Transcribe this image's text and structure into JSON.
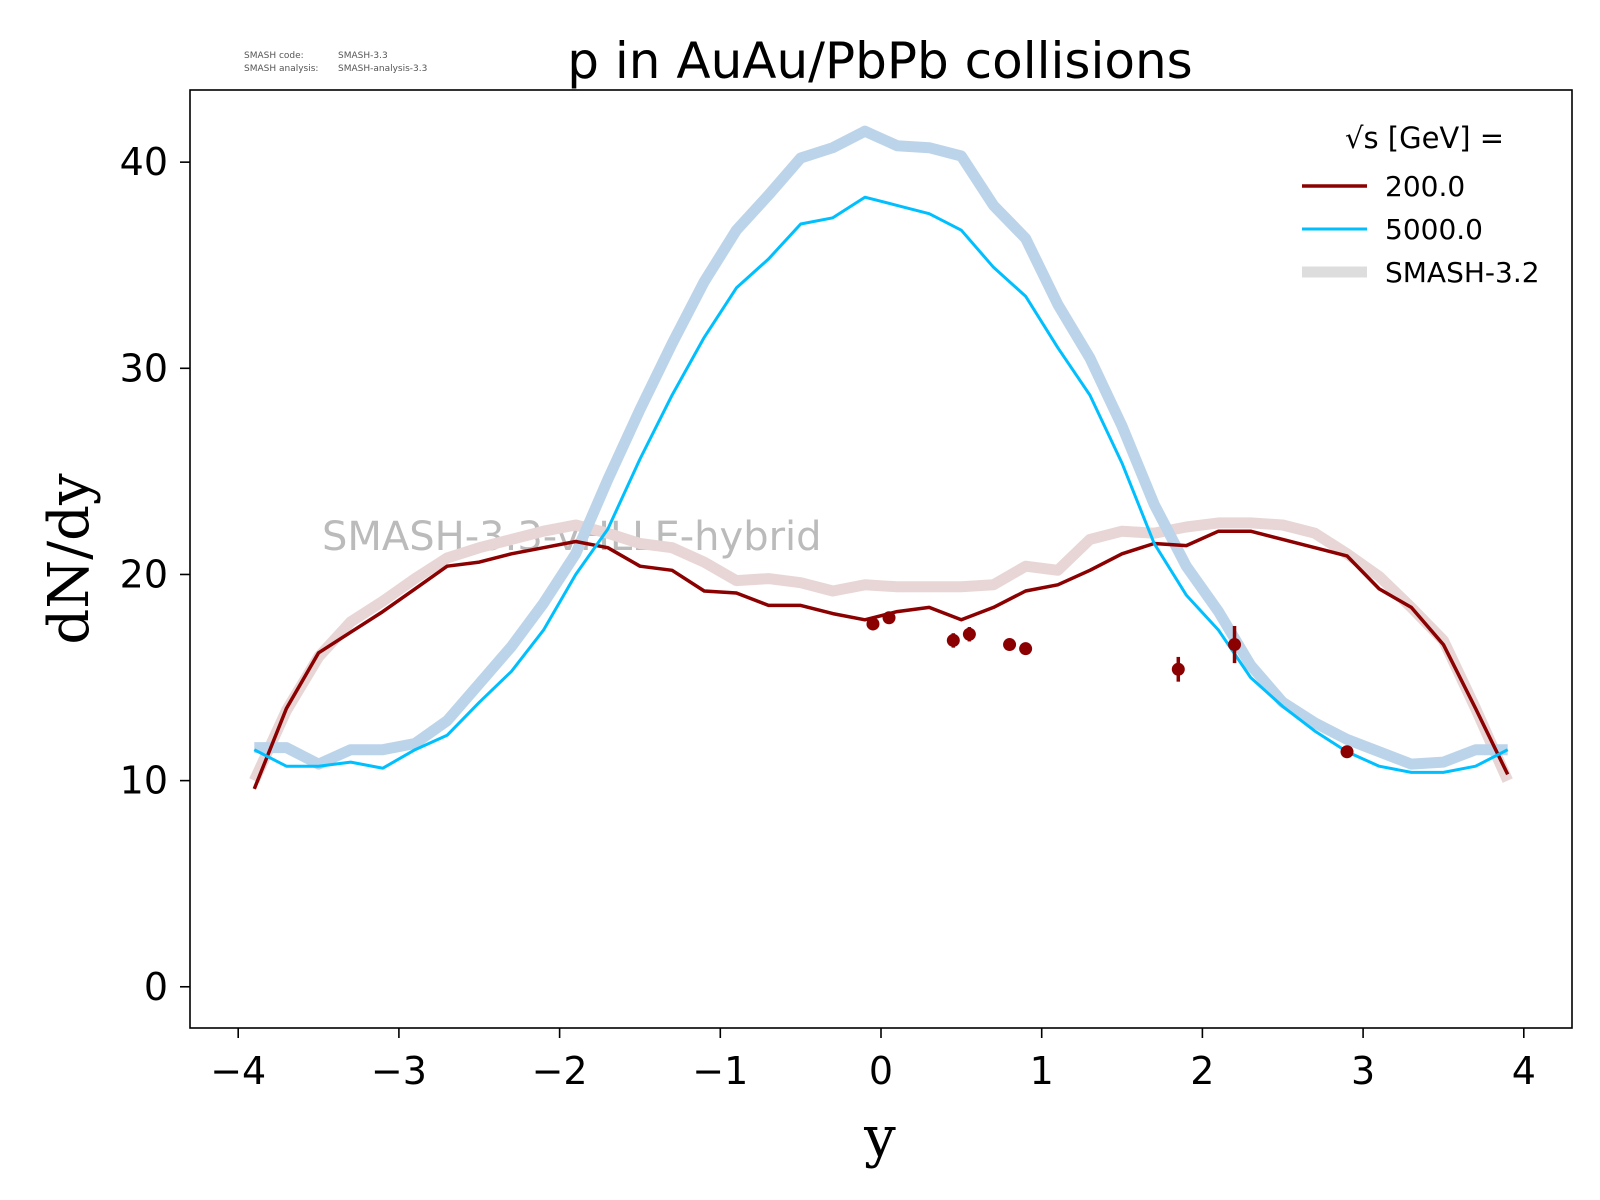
{
  "meta": {
    "code_label": "SMASH code:",
    "code_value": "SMASH-3.3",
    "analysis_label": "SMASH analysis:",
    "analysis_value": "SMASH-analysis-3.3"
  },
  "watermark": "SMASH-3.3-vHLLE-hybrid",
  "colors": {
    "s200": "#8b0000",
    "s5000": "#00bfff",
    "ref200": "#e8d6d6",
    "ref5000": "#bcd4ea",
    "legend_ref": "#dddddd",
    "exp_data": "#8b0000",
    "watermark": "#bbbbbb"
  },
  "chart_data": {
    "type": "line",
    "title": "p in AuAu/PbPb collisions",
    "xlabel": "y",
    "ylabel": "dN/dy",
    "xlim": [
      -4.3,
      4.3
    ],
    "ylim": [
      -2,
      43.5
    ],
    "xticks": [
      -4,
      -3,
      -2,
      -1,
      0,
      1,
      2,
      3,
      4
    ],
    "xtick_labels": [
      "−4",
      "−3",
      "−2",
      "−1",
      "0",
      "1",
      "2",
      "3",
      "4"
    ],
    "yticks": [
      0,
      10,
      20,
      30,
      40
    ],
    "ytick_labels": [
      "0",
      "10",
      "20",
      "30",
      "40"
    ],
    "grid": false,
    "legend": {
      "position": "top-right",
      "title": "√s  [GeV] =",
      "entries": [
        "200.0",
        "5000.0",
        "SMASH-3.2"
      ]
    },
    "x": [
      -3.9,
      -3.7,
      -3.5,
      -3.3,
      -3.1,
      -2.9,
      -2.7,
      -2.5,
      -2.3,
      -2.1,
      -1.9,
      -1.7,
      -1.5,
      -1.3,
      -1.1,
      -0.9,
      -0.7,
      -0.5,
      -0.3,
      -0.1,
      0.1,
      0.3,
      0.5,
      0.7,
      0.9,
      1.1,
      1.3,
      1.5,
      1.7,
      1.9,
      2.1,
      2.3,
      2.5,
      2.7,
      2.9,
      3.1,
      3.3,
      3.5,
      3.7,
      3.9
    ],
    "series": [
      {
        "name": "200.0",
        "values": [
          9.6,
          13.5,
          16.2,
          17.2,
          18.2,
          19.3,
          20.4,
          20.6,
          21.0,
          21.3,
          21.6,
          21.3,
          20.4,
          20.2,
          19.2,
          19.1,
          18.5,
          18.5,
          18.1,
          17.8,
          18.2,
          18.4,
          17.8,
          18.4,
          19.2,
          19.5,
          20.2,
          21.0,
          21.5,
          21.4,
          22.1,
          22.1,
          21.7,
          21.3,
          20.9,
          19.3,
          18.4,
          16.6,
          13.5,
          10.3
        ]
      },
      {
        "name": "5000.0",
        "values": [
          11.5,
          10.7,
          10.7,
          10.9,
          10.6,
          11.5,
          12.2,
          13.8,
          15.3,
          17.3,
          20.0,
          22.2,
          25.6,
          28.7,
          31.5,
          33.9,
          35.3,
          37.0,
          37.3,
          38.3,
          37.9,
          37.5,
          36.7,
          34.9,
          33.5,
          31.0,
          28.7,
          25.4,
          21.5,
          19.0,
          17.3,
          15.0,
          13.6,
          12.4,
          11.4,
          10.7,
          10.4,
          10.4,
          10.7,
          11.5
        ]
      }
    ],
    "reference_series": [
      {
        "name": "SMASH-3.2",
        "energy": "200.0",
        "values": [
          10.0,
          13.4,
          16.0,
          17.7,
          18.7,
          19.8,
          20.8,
          21.3,
          21.7,
          22.1,
          22.4,
          22.0,
          21.5,
          21.3,
          20.6,
          19.7,
          19.8,
          19.6,
          19.2,
          19.5,
          19.4,
          19.4,
          19.4,
          19.5,
          20.4,
          20.2,
          21.7,
          22.1,
          22.0,
          22.3,
          22.5,
          22.5,
          22.4,
          22.0,
          21.0,
          19.9,
          18.4,
          16.8,
          13.5,
          10.0
        ]
      },
      {
        "name": "SMASH-3.2",
        "energy": "5000.0",
        "values": [
          11.6,
          11.6,
          10.8,
          11.5,
          11.5,
          11.8,
          12.9,
          14.7,
          16.5,
          18.6,
          21.0,
          24.6,
          28.0,
          31.2,
          34.2,
          36.7,
          38.4,
          40.2,
          40.7,
          41.5,
          40.8,
          40.7,
          40.3,
          37.9,
          36.3,
          33.1,
          30.5,
          27.2,
          23.4,
          20.4,
          18.2,
          15.6,
          13.8,
          12.8,
          12.0,
          11.4,
          10.8,
          10.9,
          11.5,
          11.5
        ]
      }
    ],
    "experimental_data": [
      {
        "x": -0.05,
        "y": 17.6,
        "err": 0.3
      },
      {
        "x": 0.05,
        "y": 17.9,
        "err": 0.3
      },
      {
        "x": 0.45,
        "y": 16.8,
        "err": 0.35
      },
      {
        "x": 0.55,
        "y": 17.1,
        "err": 0.35
      },
      {
        "x": 0.8,
        "y": 16.6,
        "err": 0.2
      },
      {
        "x": 0.9,
        "y": 16.4,
        "err": 0.2
      },
      {
        "x": 1.85,
        "y": 15.4,
        "err": 0.6
      },
      {
        "x": 2.2,
        "y": 16.6,
        "err": 0.9
      },
      {
        "x": 2.9,
        "y": 11.4,
        "err": 0.2
      }
    ]
  }
}
